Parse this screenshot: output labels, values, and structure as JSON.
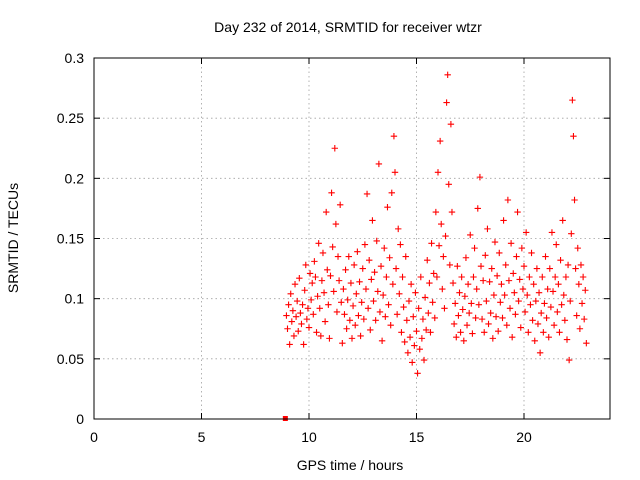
{
  "chart_data": {
    "type": "scatter",
    "title": "Day 232 of 2014, SRMTID for receiver wtzr",
    "xlabel": "GPS time / hours",
    "ylabel": "SRMTID / TECUs",
    "xlim": [
      0,
      24
    ],
    "ylim": [
      0,
      0.3
    ],
    "x_ticks": [
      "0",
      "5",
      "10",
      "15",
      "20"
    ],
    "y_ticks": [
      "0",
      "0.05",
      "0.1",
      "0.15",
      "0.2",
      "0.25",
      "0.3"
    ],
    "grid": true,
    "marker": "plus",
    "color": "#ff0000",
    "series": [
      {
        "points": [
          [
            8.95,
            0.086
          ],
          [
            9.0,
            0.075
          ],
          [
            9.05,
            0.095
          ],
          [
            9.1,
            0.062
          ],
          [
            9.15,
            0.104
          ],
          [
            9.2,
            0.081
          ],
          [
            9.25,
            0.09
          ],
          [
            9.3,
            0.069
          ],
          [
            9.35,
            0.112
          ],
          [
            9.4,
            0.085
          ],
          [
            9.45,
            0.098
          ],
          [
            9.5,
            0.073
          ],
          [
            9.55,
            0.117
          ],
          [
            9.6,
            0.088
          ],
          [
            9.65,
            0.079
          ],
          [
            9.7,
            0.095
          ],
          [
            9.75,
            0.062
          ],
          [
            9.8,
            0.107
          ],
          [
            9.85,
            0.128
          ],
          [
            9.9,
            0.083
          ],
          [
            9.95,
            0.092
          ],
          [
            10.0,
            0.076
          ],
          [
            10.05,
            0.121
          ],
          [
            10.1,
            0.099
          ],
          [
            10.15,
            0.113
          ],
          [
            10.2,
            0.087
          ],
          [
            10.25,
            0.131
          ],
          [
            10.3,
            0.118
          ],
          [
            10.35,
            0.072
          ],
          [
            10.4,
            0.102
          ],
          [
            10.45,
            0.146
          ],
          [
            10.5,
            0.092
          ],
          [
            10.55,
            0.069
          ],
          [
            10.6,
            0.115
          ],
          [
            10.65,
            0.138
          ],
          [
            10.7,
            0.105
          ],
          [
            10.75,
            0.081
          ],
          [
            10.8,
            0.172
          ],
          [
            10.85,
            0.124
          ],
          [
            10.9,
            0.095
          ],
          [
            10.95,
            0.067
          ],
          [
            11.0,
            0.119
          ],
          [
            11.05,
            0.188
          ],
          [
            11.1,
            0.143
          ],
          [
            11.15,
            0.106
          ],
          [
            11.2,
            0.225
          ],
          [
            11.25,
            0.162
          ],
          [
            11.3,
            0.089
          ],
          [
            11.35,
            0.135
          ],
          [
            11.4,
            0.115
          ],
          [
            11.45,
            0.178
          ],
          [
            11.5,
            0.097
          ],
          [
            11.55,
            0.063
          ],
          [
            11.6,
            0.108
          ],
          [
            11.65,
            0.087
          ],
          [
            11.7,
            0.124
          ],
          [
            11.75,
            0.075
          ],
          [
            11.8,
            0.099
          ],
          [
            11.85,
            0.135
          ],
          [
            11.9,
            0.082
          ],
          [
            11.95,
            0.113
          ],
          [
            12.0,
            0.067
          ],
          [
            12.05,
            0.094
          ],
          [
            12.1,
            0.128
          ],
          [
            12.15,
            0.078
          ],
          [
            12.2,
            0.104
          ],
          [
            12.25,
            0.139
          ],
          [
            12.3,
            0.086
          ],
          [
            12.35,
            0.114
          ],
          [
            12.4,
            0.069
          ],
          [
            12.45,
            0.097
          ],
          [
            12.5,
            0.125
          ],
          [
            12.55,
            0.083
          ],
          [
            12.6,
            0.145
          ],
          [
            12.65,
            0.108
          ],
          [
            12.7,
            0.187
          ],
          [
            12.75,
            0.092
          ],
          [
            12.8,
            0.132
          ],
          [
            12.85,
            0.074
          ],
          [
            12.9,
            0.116
          ],
          [
            12.95,
            0.165
          ],
          [
            13.0,
            0.098
          ],
          [
            13.05,
            0.122
          ],
          [
            13.1,
            0.082
          ],
          [
            13.15,
            0.148
          ],
          [
            13.2,
            0.106
          ],
          [
            13.25,
            0.212
          ],
          [
            13.3,
            0.089
          ],
          [
            13.35,
            0.127
          ],
          [
            13.4,
            0.065
          ],
          [
            13.45,
            0.103
          ],
          [
            13.5,
            0.142
          ],
          [
            13.55,
            0.085
          ],
          [
            13.6,
            0.118
          ],
          [
            13.65,
            0.176
          ],
          [
            13.7,
            0.095
          ],
          [
            13.75,
            0.134
          ],
          [
            13.8,
            0.078
          ],
          [
            13.85,
            0.188
          ],
          [
            13.9,
            0.112
          ],
          [
            13.95,
            0.235
          ],
          [
            14.0,
            0.205
          ],
          [
            14.05,
            0.125
          ],
          [
            14.1,
            0.087
          ],
          [
            14.15,
            0.158
          ],
          [
            14.2,
            0.104
          ],
          [
            14.25,
            0.145
          ],
          [
            14.3,
            0.072
          ],
          [
            14.35,
            0.118
          ],
          [
            14.4,
            0.093
          ],
          [
            14.45,
            0.064
          ],
          [
            14.5,
            0.135
          ],
          [
            14.55,
            0.082
          ],
          [
            14.6,
            0.055
          ],
          [
            14.65,
            0.098
          ],
          [
            14.7,
            0.068
          ],
          [
            14.75,
            0.112
          ],
          [
            14.8,
            0.047
          ],
          [
            14.85,
            0.085
          ],
          [
            14.9,
            0.061
          ],
          [
            14.95,
            0.105
          ],
          [
            15.0,
            0.073
          ],
          [
            15.05,
            0.038
          ],
          [
            15.1,
            0.092
          ],
          [
            15.15,
            0.058
          ],
          [
            15.2,
            0.118
          ],
          [
            15.25,
            0.067
          ],
          [
            15.3,
            0.083
          ],
          [
            15.35,
            0.049
          ],
          [
            15.4,
            0.101
          ],
          [
            15.45,
            0.074
          ],
          [
            15.5,
            0.132
          ],
          [
            15.55,
            0.088
          ],
          [
            15.6,
            0.113
          ],
          [
            15.65,
            0.072
          ],
          [
            15.7,
            0.146
          ],
          [
            15.75,
            0.097
          ],
          [
            15.8,
            0.121
          ],
          [
            15.85,
            0.084
          ],
          [
            15.9,
            0.172
          ],
          [
            15.95,
            0.118
          ],
          [
            16.0,
            0.205
          ],
          [
            16.05,
            0.144
          ],
          [
            16.1,
            0.231
          ],
          [
            16.15,
            0.162
          ],
          [
            16.2,
            0.108
          ],
          [
            16.25,
            0.135
          ],
          [
            16.3,
            0.092
          ],
          [
            16.35,
            0.152
          ],
          [
            16.4,
            0.263
          ],
          [
            16.45,
            0.286
          ],
          [
            16.5,
            0.195
          ],
          [
            16.55,
            0.128
          ],
          [
            16.6,
            0.245
          ],
          [
            16.65,
            0.172
          ],
          [
            16.7,
            0.113
          ],
          [
            16.75,
            0.079
          ],
          [
            16.8,
            0.096
          ],
          [
            16.85,
            0.068
          ],
          [
            16.9,
            0.127
          ],
          [
            16.95,
            0.086
          ],
          [
            17.0,
            0.105
          ],
          [
            17.05,
            0.072
          ],
          [
            17.1,
            0.118
          ],
          [
            17.15,
            0.091
          ],
          [
            17.2,
            0.065
          ],
          [
            17.25,
            0.102
          ],
          [
            17.3,
            0.134
          ],
          [
            17.35,
            0.078
          ],
          [
            17.4,
            0.112
          ],
          [
            17.45,
            0.088
          ],
          [
            17.5,
            0.153
          ],
          [
            17.55,
            0.096
          ],
          [
            17.6,
            0.071
          ],
          [
            17.65,
            0.118
          ],
          [
            17.7,
            0.142
          ],
          [
            17.75,
            0.084
          ],
          [
            17.8,
            0.108
          ],
          [
            17.85,
            0.175
          ],
          [
            17.9,
            0.095
          ],
          [
            17.95,
            0.201
          ],
          [
            18.0,
            0.127
          ],
          [
            18.05,
            0.083
          ],
          [
            18.1,
            0.115
          ],
          [
            18.15,
            0.072
          ],
          [
            18.2,
            0.136
          ],
          [
            18.25,
            0.098
          ],
          [
            18.3,
            0.158
          ],
          [
            18.35,
            0.079
          ],
          [
            18.4,
            0.114
          ],
          [
            18.45,
            0.088
          ],
          [
            18.5,
            0.125
          ],
          [
            18.55,
            0.067
          ],
          [
            18.6,
            0.103
          ],
          [
            18.65,
            0.147
          ],
          [
            18.7,
            0.085
          ],
          [
            18.75,
            0.119
          ],
          [
            18.8,
            0.073
          ],
          [
            18.85,
            0.138
          ],
          [
            18.9,
            0.097
          ],
          [
            18.95,
            0.112
          ],
          [
            19.0,
            0.084
          ],
          [
            19.05,
            0.165
          ],
          [
            19.1,
            0.103
          ],
          [
            19.15,
            0.128
          ],
          [
            19.2,
            0.078
          ],
          [
            19.25,
            0.182
          ],
          [
            19.3,
            0.115
          ],
          [
            19.35,
            0.092
          ],
          [
            19.4,
            0.146
          ],
          [
            19.45,
            0.068
          ],
          [
            19.5,
            0.121
          ],
          [
            19.55,
            0.105
          ],
          [
            19.6,
            0.087
          ],
          [
            19.65,
            0.135
          ],
          [
            19.7,
            0.172
          ],
          [
            19.75,
            0.098
          ],
          [
            19.8,
            0.116
          ],
          [
            19.85,
            0.076
          ],
          [
            19.9,
            0.142
          ],
          [
            19.95,
            0.108
          ],
          [
            20.0,
            0.127
          ],
          [
            20.05,
            0.089
          ],
          [
            20.1,
            0.155
          ],
          [
            20.15,
            0.103
          ],
          [
            20.2,
            0.072
          ],
          [
            20.25,
            0.118
          ],
          [
            20.3,
            0.095
          ],
          [
            20.35,
            0.138
          ],
          [
            20.4,
            0.082
          ],
          [
            20.45,
            0.112
          ],
          [
            20.5,
            0.065
          ],
          [
            20.55,
            0.098
          ],
          [
            20.6,
            0.125
          ],
          [
            20.65,
            0.079
          ],
          [
            20.7,
            0.105
          ],
          [
            20.75,
            0.055
          ],
          [
            20.8,
            0.088
          ],
          [
            20.85,
            0.118
          ],
          [
            20.9,
            0.072
          ],
          [
            20.95,
            0.096
          ],
          [
            21.0,
            0.135
          ],
          [
            21.05,
            0.084
          ],
          [
            21.1,
            0.108
          ],
          [
            21.15,
            0.068
          ],
          [
            21.2,
            0.125
          ],
          [
            21.25,
            0.093
          ],
          [
            21.3,
            0.155
          ],
          [
            21.35,
            0.106
          ],
          [
            21.4,
            0.078
          ],
          [
            21.45,
            0.118
          ],
          [
            21.5,
            0.145
          ],
          [
            21.55,
            0.089
          ],
          [
            21.6,
            0.112
          ],
          [
            21.65,
            0.072
          ],
          [
            21.7,
            0.132
          ],
          [
            21.75,
            0.095
          ],
          [
            21.8,
            0.165
          ],
          [
            21.85,
            0.103
          ],
          [
            21.9,
            0.082
          ],
          [
            21.95,
            0.118
          ],
          [
            22.0,
            0.066
          ],
          [
            22.05,
            0.128
          ],
          [
            22.1,
            0.049
          ],
          [
            22.15,
            0.098
          ],
          [
            22.2,
            0.154
          ],
          [
            22.25,
            0.265
          ],
          [
            22.3,
            0.235
          ],
          [
            22.35,
            0.182
          ],
          [
            22.4,
            0.125
          ],
          [
            22.45,
            0.086
          ],
          [
            22.5,
            0.142
          ],
          [
            22.55,
            0.112
          ],
          [
            22.6,
            0.075
          ],
          [
            22.65,
            0.128
          ],
          [
            22.7,
            0.096
          ],
          [
            22.75,
            0.118
          ],
          [
            22.8,
            0.083
          ],
          [
            22.85,
            0.107
          ],
          [
            22.9,
            0.063
          ]
        ]
      }
    ],
    "extra_markers": [
      [
        8.9,
        0.0
      ]
    ]
  }
}
